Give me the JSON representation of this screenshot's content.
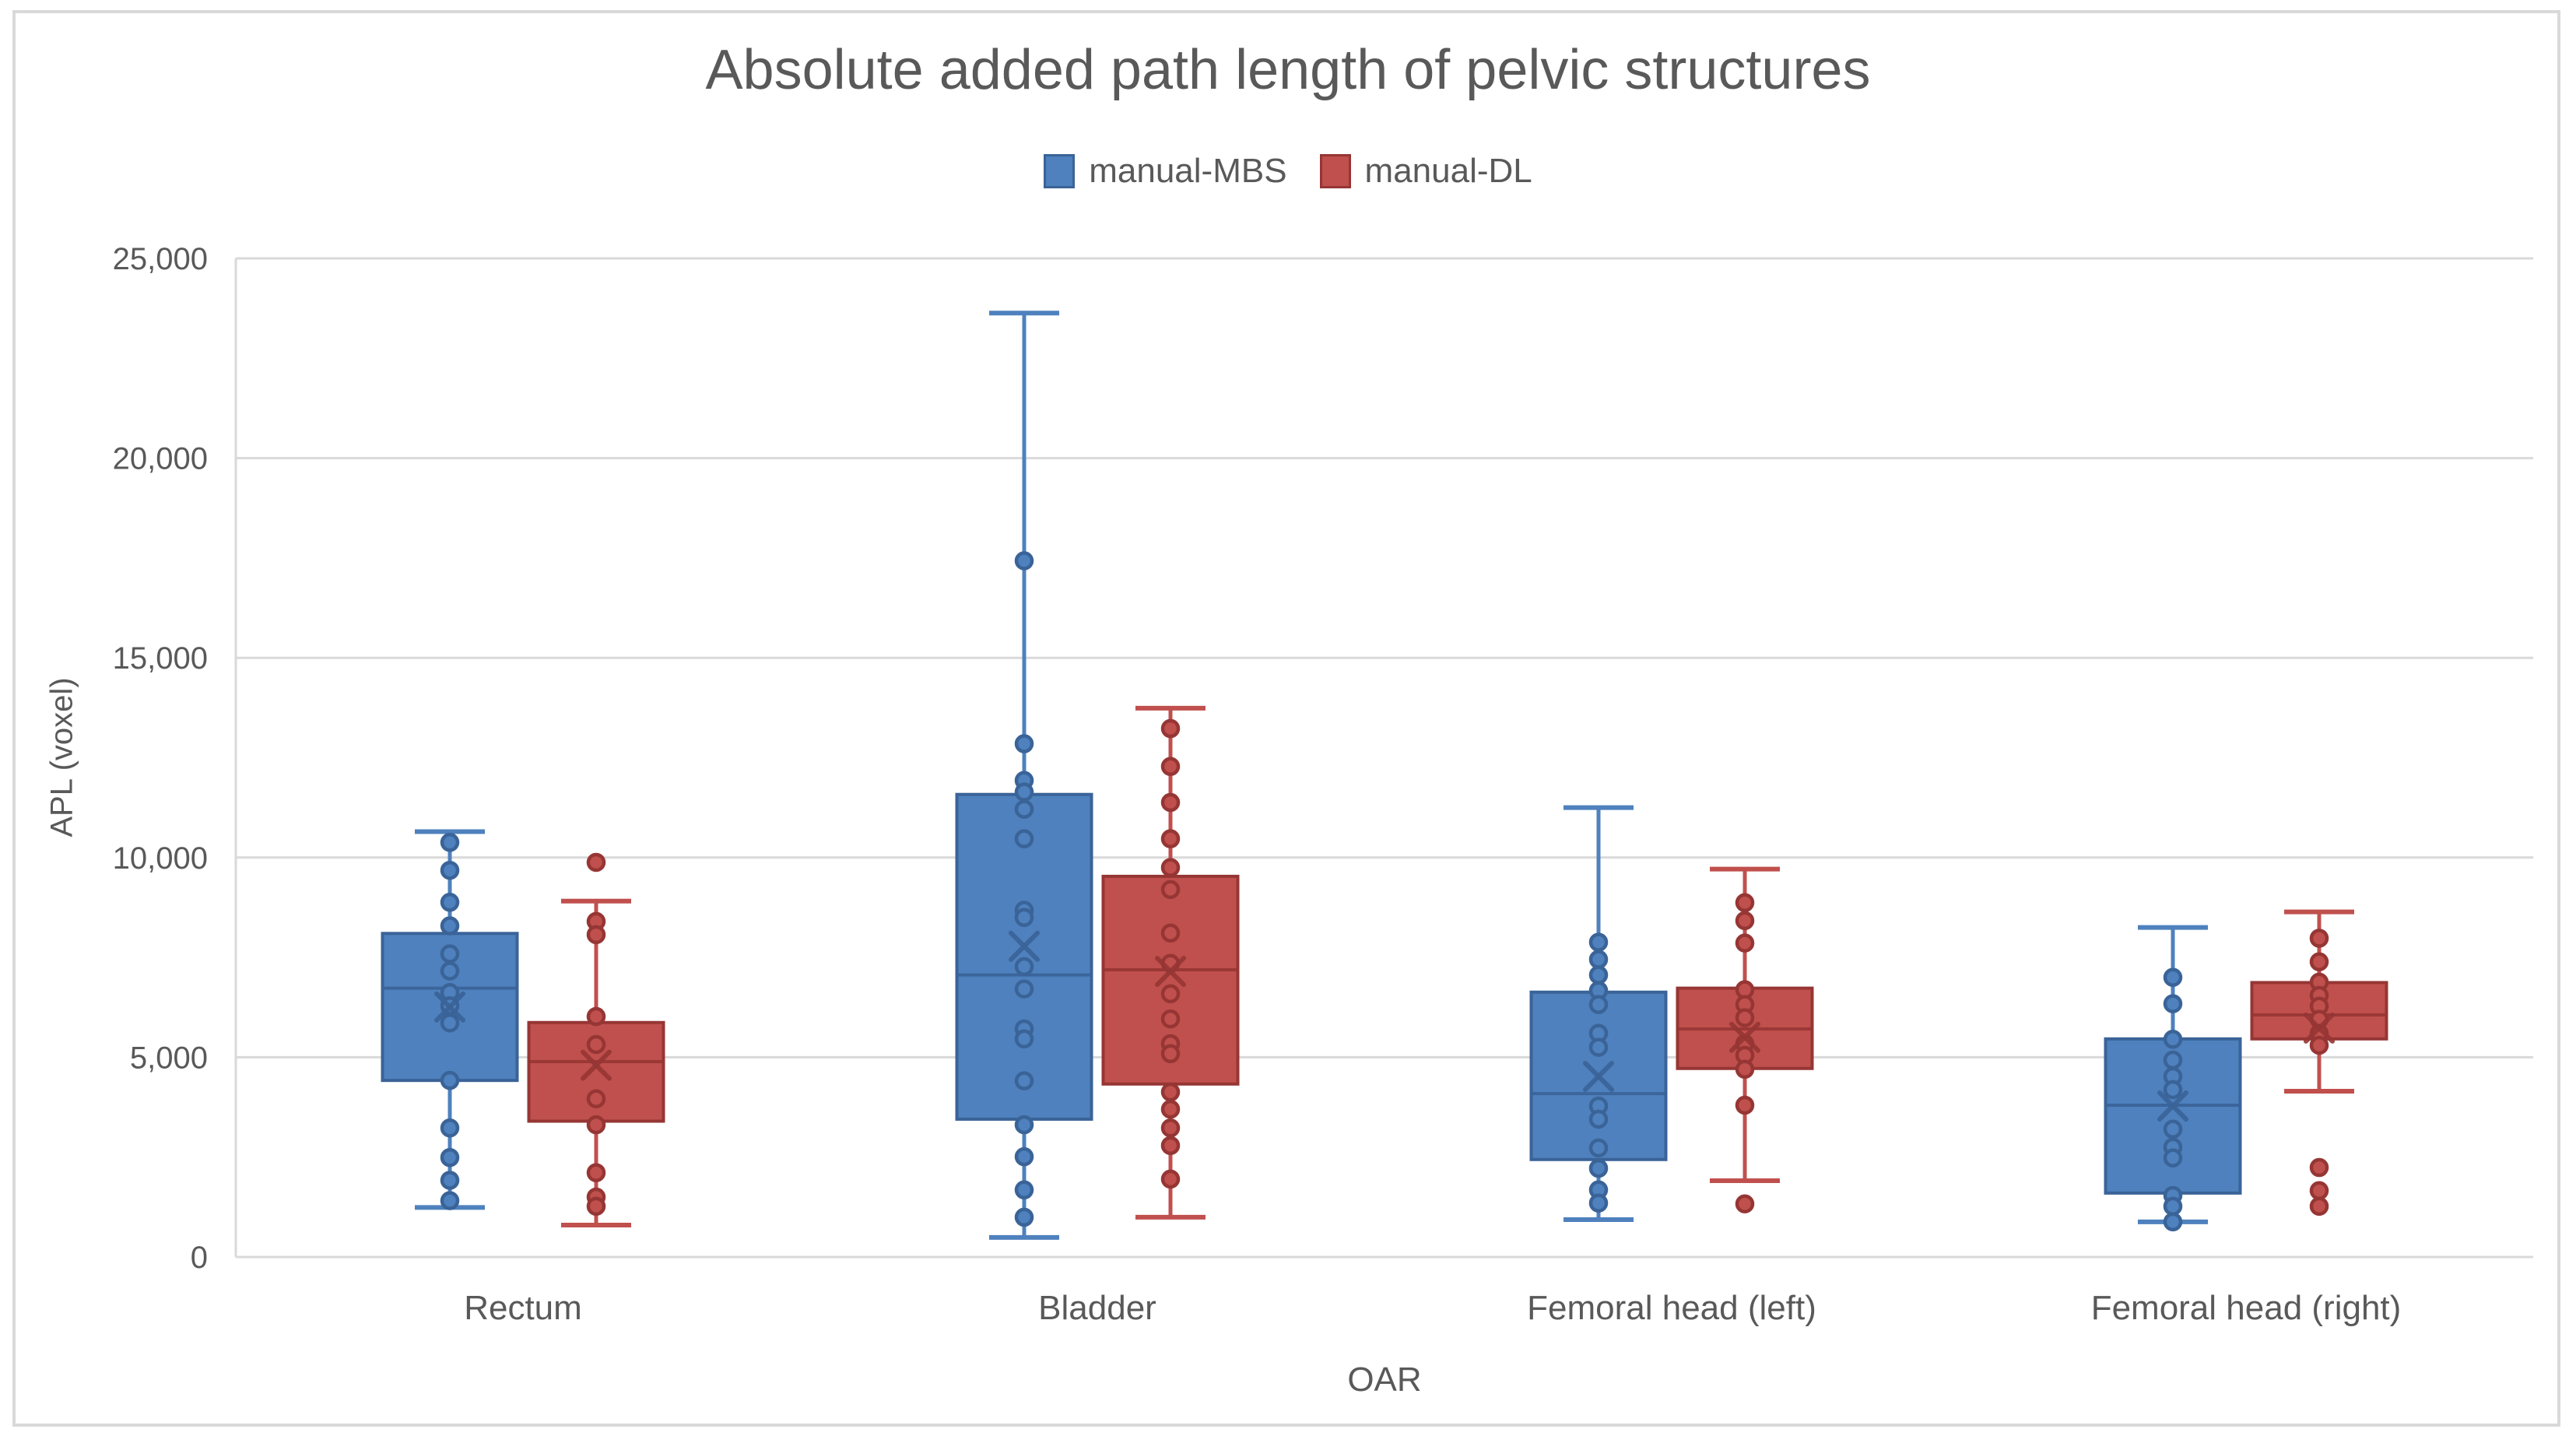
{
  "chart_data": {
    "type": "boxplot",
    "title": "Absolute added path length of pelvic structures",
    "xlabel": "OAR",
    "ylabel": "APL (voxel)",
    "ylim": [
      0,
      25000
    ],
    "yticks": [
      0,
      5000,
      10000,
      15000,
      20000,
      25000
    ],
    "ytick_labels": [
      "0",
      "5,000",
      "10,000",
      "15,000",
      "20,000",
      "25,000"
    ],
    "grid": true,
    "legend_position": "top-center",
    "colors": {
      "grid": "#D9D9D9",
      "axis_line": "#D9D9D9",
      "text": "#595959",
      "frame": "#D9D9D9"
    },
    "categories": [
      "Rectum",
      "Bladder",
      "Femoral head (left)",
      "Femoral head (right)"
    ],
    "series": [
      {
        "name": "manual-MBS",
        "fill": "#4E81BD",
        "stroke": "#3A6398"
      },
      {
        "name": "manual-DL",
        "fill": "#C0504D",
        "stroke": "#963634"
      }
    ],
    "boxes": [
      {
        "category": "Rectum",
        "series": "manual-MBS",
        "whislo": 1240,
        "q1": 4420,
        "med": 6730,
        "mean": 6260,
        "q3": 8100,
        "whishi": 10650,
        "points": [
          10380,
          9680,
          8880,
          8290,
          7590,
          7160,
          6620,
          6290,
          5860,
          4420,
          3230,
          2490,
          1920,
          1410
        ]
      },
      {
        "category": "Rectum",
        "series": "manual-DL",
        "whislo": 800,
        "q1": 3400,
        "med": 4890,
        "mean": 4800,
        "q3": 5870,
        "whishi": 8910,
        "points": [
          9880,
          8400,
          8070,
          6020,
          5320,
          3960,
          3310,
          2110,
          1500,
          1270
        ]
      },
      {
        "category": "Bladder",
        "series": "manual-MBS",
        "whislo": 490,
        "q1": 3450,
        "med": 7060,
        "mean": 7780,
        "q3": 11580,
        "whishi": 23630,
        "points": [
          17430,
          12850,
          11930,
          11640,
          11210,
          10470,
          8680,
          8500,
          7270,
          6710,
          5710,
          5460,
          4410,
          3310,
          2510,
          1680,
          995
        ]
      },
      {
        "category": "Bladder",
        "series": "manual-DL",
        "whislo": 995,
        "q1": 4330,
        "med": 7190,
        "mean": 7150,
        "q3": 9530,
        "whishi": 13740,
        "points": [
          13230,
          12280,
          11380,
          10470,
          9750,
          9200,
          8110,
          7350,
          6590,
          5960,
          5340,
          5090,
          4130,
          3700,
          3230,
          2790,
          1950
        ]
      },
      {
        "category": "Femoral head (left)",
        "series": "manual-MBS",
        "whislo": 935,
        "q1": 2440,
        "med": 4090,
        "mean": 4520,
        "q3": 6630,
        "whishi": 11250,
        "points": [
          7880,
          7450,
          7060,
          6670,
          6320,
          5600,
          5250,
          3780,
          3450,
          2730,
          2220,
          1680,
          1350
        ]
      },
      {
        "category": "Femoral head (left)",
        "series": "manual-DL",
        "whislo": 1910,
        "q1": 4720,
        "med": 5710,
        "mean": 5500,
        "q3": 6730,
        "whishi": 9710,
        "points": [
          8870,
          8420,
          7860,
          6690,
          6320,
          5990,
          5340,
          5050,
          4700,
          3800,
          1330
        ]
      },
      {
        "category": "Femoral head (right)",
        "series": "manual-MBS",
        "whislo": 880,
        "q1": 1600,
        "med": 3800,
        "mean": 3780,
        "q3": 5460,
        "whishi": 8250,
        "points": [
          7000,
          6340,
          5450,
          4930,
          4520,
          4190,
          3200,
          2750,
          2480,
          1540,
          1270,
          880
        ]
      },
      {
        "category": "Femoral head (right)",
        "series": "manual-DL",
        "whislo": 4150,
        "q1": 5460,
        "med": 6060,
        "mean": 5730,
        "q3": 6870,
        "whishi": 8640,
        "points": [
          7980,
          7390,
          6880,
          6550,
          6280,
          5950,
          5600,
          5300,
          2240,
          1660,
          1270
        ]
      }
    ]
  }
}
